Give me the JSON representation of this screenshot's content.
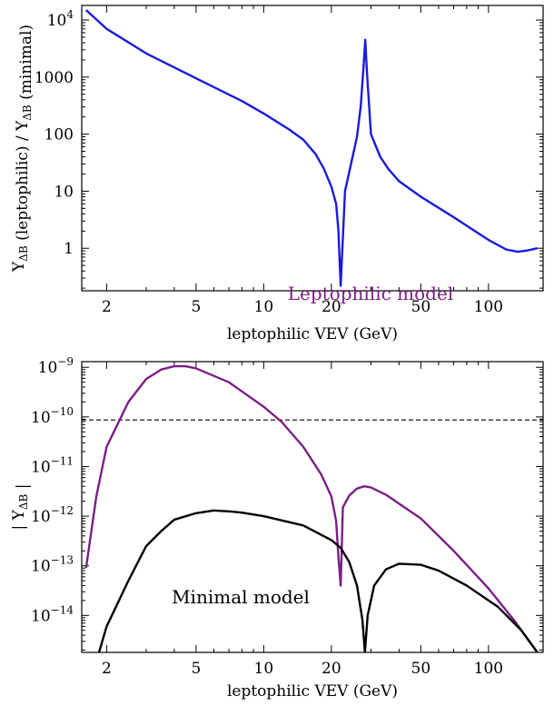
{
  "chart_data": [
    {
      "type": "line",
      "xscale": "log",
      "yscale": "log",
      "xlim": [
        1.55,
        175
      ],
      "ylim": [
        0.18,
        18000
      ],
      "xlabel": "leptophilic VEV (GeV)",
      "ylabel": "Y_ΔB (leptophilic) / Y_ΔB (minimal)",
      "x_ticks": [
        {
          "v": 2,
          "label": "2"
        },
        {
          "v": 5,
          "label": "5"
        },
        {
          "v": 10,
          "label": "10"
        },
        {
          "v": 20,
          "label": "20"
        },
        {
          "v": 50,
          "label": "50"
        },
        {
          "v": 100,
          "label": "100"
        }
      ],
      "y_ticks": [
        {
          "v": 1,
          "label": "1"
        },
        {
          "v": 10,
          "label": "10"
        },
        {
          "v": 100,
          "label": "100"
        },
        {
          "v": 1000,
          "label": "1000"
        },
        {
          "v": 10000,
          "label": "10",
          "sup": "4"
        }
      ],
      "grid": false,
      "series": [
        {
          "color": "#1a1adb",
          "points": [
            [
              1.62,
              15000
            ],
            [
              2.0,
              7000
            ],
            [
              3.0,
              2600
            ],
            [
              5.0,
              950
            ],
            [
              8.0,
              380
            ],
            [
              10.0,
              230
            ],
            [
              13.0,
              120
            ],
            [
              15.0,
              80
            ],
            [
              17.0,
              45
            ],
            [
              18.5,
              25
            ],
            [
              20.0,
              12
            ],
            [
              21.0,
              6
            ],
            [
              21.5,
              2
            ],
            [
              22.0,
              0.22
            ],
            [
              23.0,
              10
            ],
            [
              26.0,
              90
            ],
            [
              27.0,
              300
            ],
            [
              27.8,
              1500
            ],
            [
              28.3,
              4500
            ],
            [
              28.8,
              1200
            ],
            [
              30.0,
              100
            ],
            [
              33.0,
              40
            ],
            [
              36.0,
              24
            ],
            [
              40.0,
              15
            ],
            [
              50.0,
              8
            ],
            [
              70.0,
              3.5
            ],
            [
              100.0,
              1.4
            ],
            [
              120.0,
              0.95
            ],
            [
              135.0,
              0.87
            ],
            [
              150.0,
              0.92
            ],
            [
              165.0,
              1.0
            ]
          ]
        }
      ]
    },
    {
      "type": "line",
      "xscale": "log",
      "yscale": "log",
      "xlim": [
        1.55,
        175
      ],
      "ylim": [
        1.8e-15,
        1.3e-09
      ],
      "xlabel": "leptophilic VEV (GeV)",
      "ylabel": "| Y_ΔB |",
      "x_ticks": [
        {
          "v": 2,
          "label": "2"
        },
        {
          "v": 5,
          "label": "5"
        },
        {
          "v": 10,
          "label": "10"
        },
        {
          "v": 20,
          "label": "20"
        },
        {
          "v": 50,
          "label": "50"
        },
        {
          "v": 100,
          "label": "100"
        }
      ],
      "y_ticks": [
        {
          "v": 1e-14,
          "label": "10",
          "sup": "−14"
        },
        {
          "v": 1e-13,
          "label": "10",
          "sup": "−13"
        },
        {
          "v": 1e-12,
          "label": "10",
          "sup": "−12"
        },
        {
          "v": 1e-11,
          "label": "10",
          "sup": "−11"
        },
        {
          "v": 1e-10,
          "label": "10",
          "sup": "−10"
        },
        {
          "v": 1e-09,
          "label": "10",
          "sup": "−9"
        }
      ],
      "grid": false,
      "reference_line": {
        "y": 8.7e-11,
        "style": "dashed"
      },
      "annotations": [
        {
          "text": "Leptophilic model",
          "color": "#7b1f85"
        },
        {
          "text": "Minimal model",
          "color": "#000000"
        }
      ],
      "series": [
        {
          "name": "Leptophilic model",
          "color": "#7b1f85",
          "points": [
            [
              1.62,
              9e-14
            ],
            [
              1.8,
              2.5e-12
            ],
            [
              2.0,
              2.5e-11
            ],
            [
              2.5,
              2e-10
            ],
            [
              3.0,
              5.8e-10
            ],
            [
              3.5,
              9e-10
            ],
            [
              4.0,
              1.05e-09
            ],
            [
              4.5,
              1.05e-09
            ],
            [
              5.0,
              9.5e-10
            ],
            [
              7.0,
              5e-10
            ],
            [
              10.0,
              1.6e-10
            ],
            [
              12.0,
              8e-11
            ],
            [
              15.0,
              2.5e-11
            ],
            [
              18.0,
              7e-12
            ],
            [
              20.0,
              2.5e-12
            ],
            [
              21.0,
              8e-13
            ],
            [
              21.5,
              1.5e-13
            ],
            [
              22.0,
              4e-14
            ],
            [
              22.5,
              1.5e-12
            ],
            [
              24.0,
              2.6e-12
            ],
            [
              26.0,
              3.6e-12
            ],
            [
              28.0,
              4e-12
            ],
            [
              30.0,
              3.8e-12
            ],
            [
              35.0,
              2.7e-12
            ],
            [
              50.0,
              9e-13
            ],
            [
              70.0,
              2e-13
            ],
            [
              100.0,
              3.5e-14
            ],
            [
              130.0,
              8e-15
            ],
            [
              165.0,
              1.8e-15
            ]
          ]
        },
        {
          "name": "Minimal model",
          "color": "#000000",
          "points": [
            [
              1.85,
              1.8e-15
            ],
            [
              2.0,
              6e-15
            ],
            [
              2.5,
              5e-14
            ],
            [
              3.0,
              2.5e-13
            ],
            [
              3.5,
              5e-13
            ],
            [
              4.0,
              8.5e-13
            ],
            [
              5.0,
              1.15e-12
            ],
            [
              6.0,
              1.3e-12
            ],
            [
              7.0,
              1.25e-12
            ],
            [
              8.0,
              1.18e-12
            ],
            [
              10.0,
              1e-12
            ],
            [
              15.0,
              6.5e-13
            ],
            [
              20.0,
              3.3e-13
            ],
            [
              22.0,
              2.3e-13
            ],
            [
              24.0,
              1.2e-13
            ],
            [
              26.0,
              4e-14
            ],
            [
              27.5,
              8e-15
            ],
            [
              28.2,
              1.8e-15
            ],
            [
              29.0,
              1e-14
            ],
            [
              31.0,
              4e-14
            ],
            [
              35.0,
              8.5e-14
            ],
            [
              40.0,
              1.1e-13
            ],
            [
              50.0,
              1.05e-13
            ],
            [
              60.0,
              8e-14
            ],
            [
              80.0,
              4e-14
            ],
            [
              110.0,
              1.5e-14
            ],
            [
              140.0,
              5e-15
            ],
            [
              165.0,
              1.8e-15
            ]
          ]
        }
      ]
    }
  ]
}
